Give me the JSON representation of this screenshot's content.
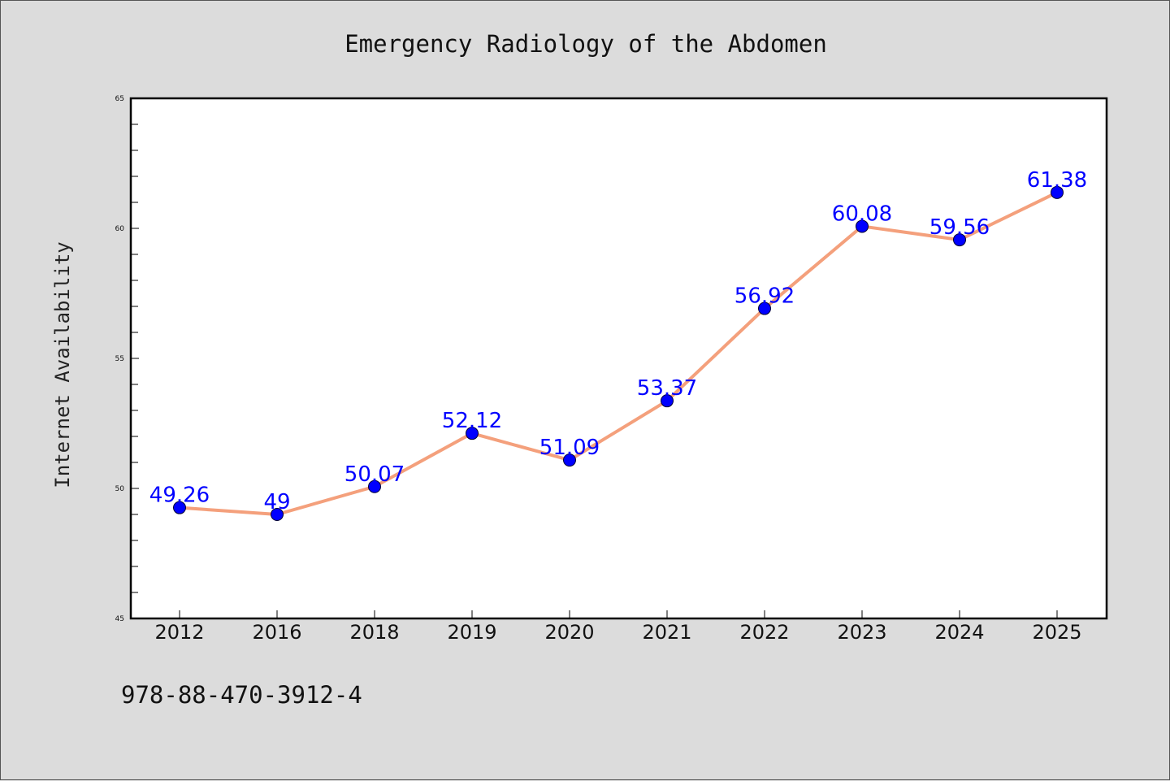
{
  "chart_data": {
    "type": "line",
    "title": "Emergency Radiology of the Abdomen",
    "xlabel": "",
    "ylabel": "Internet Availability",
    "categories": [
      "2012",
      "2016",
      "2018",
      "2019",
      "2020",
      "2021",
      "2022",
      "2023",
      "2024",
      "2025"
    ],
    "values": [
      49.26,
      49,
      50.07,
      52.12,
      51.09,
      53.37,
      56.92,
      60.08,
      59.56,
      61.38
    ],
    "data_labels": [
      "49.26",
      "49",
      "50.07",
      "52.12",
      "51.09",
      "53.37",
      "56.92",
      "60.08",
      "59.56",
      "61.38"
    ],
    "ylim": [
      45,
      65
    ],
    "yticks": [
      "45",
      "50",
      "55",
      "60",
      "65"
    ],
    "grid": false,
    "legend": "none",
    "line_color": "#f4a07c",
    "marker_color": "#0000ff",
    "label_color": "#0000ff"
  },
  "footer": {
    "isbn": "978-88-470-3912-4"
  }
}
